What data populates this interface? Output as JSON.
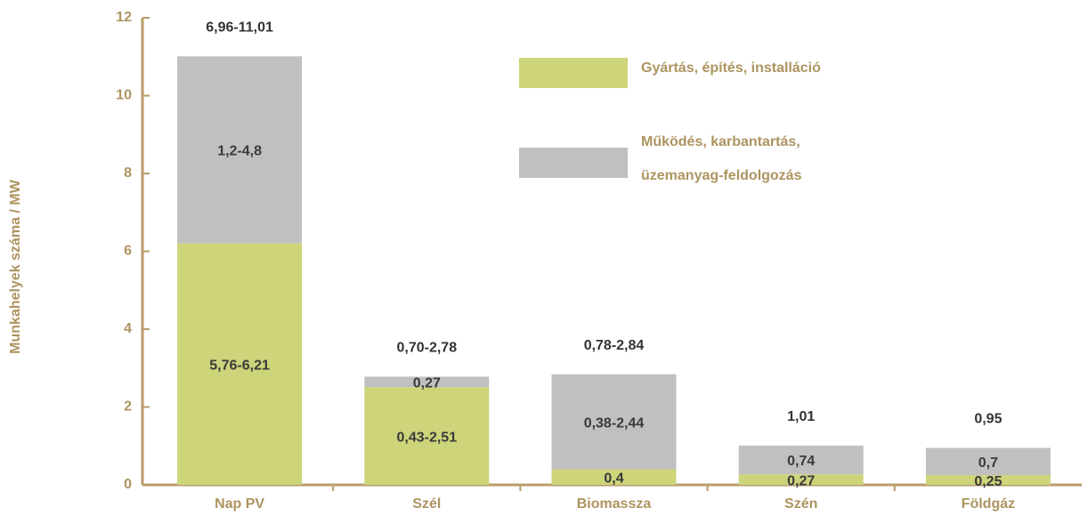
{
  "chart_data": {
    "type": "bar",
    "stacked": true,
    "y_label": "Munkahelyek száma / MW",
    "categories": [
      "Nap PV",
      "Szél",
      "Biomassza",
      "Szén",
      "Földgáz"
    ],
    "series": [
      {
        "name": "Gyártás, építés, installáció",
        "color": "#cdd47a",
        "values": [
          6.21,
          2.51,
          0.4,
          0.27,
          0.25
        ],
        "value_labels": [
          "5,76-6,21",
          "0,43-2,51",
          "0,4",
          "0,27",
          "0,25"
        ]
      },
      {
        "name": "Működés, karbantartás, üzemanyag-feldolgozás",
        "color": "#c0c0c0",
        "values": [
          4.8,
          0.27,
          2.44,
          0.74,
          0.7
        ],
        "value_labels": [
          "1,2-4,8",
          "0,27",
          "0,38-2,44",
          "0,74",
          "0,7"
        ]
      }
    ],
    "total_labels": [
      "6,96-11,01",
      "0,70-2,78",
      "0,78-2,84",
      "1,01",
      "0,95"
    ],
    "ylim": [
      0,
      12
    ],
    "yticks": [
      0,
      2,
      4,
      6,
      8,
      10,
      12
    ]
  }
}
